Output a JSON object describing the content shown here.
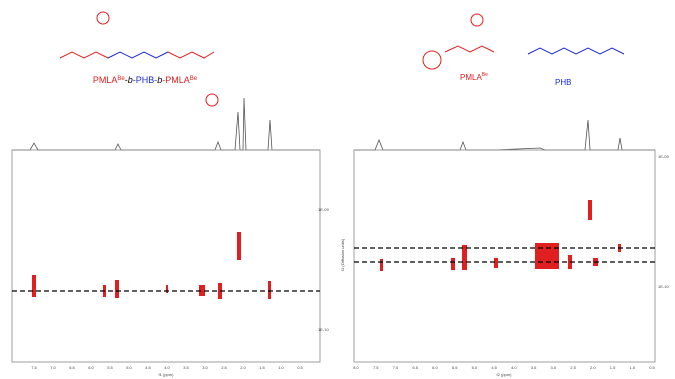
{
  "left_panel": {
    "compound_label": [
      "PMLA",
      "Be",
      "-",
      "b",
      "-PHB-",
      "b",
      "-PMLA",
      "Be"
    ],
    "x_axis_title": "f1 (ppm)",
    "x_ticks": [
      "7.5",
      "7.0",
      "6.5",
      "6.0",
      "5.5",
      "5.0",
      "4.5",
      "4.0",
      "3.5",
      "3.0",
      "2.5",
      "2.0",
      "1.5",
      "1.0",
      "0.5"
    ],
    "y_ticks": [
      "1E-09",
      "1E-10"
    ]
  },
  "right_panel": {
    "compound_labels": [
      [
        "PMLA",
        "Be"
      ],
      [
        "PHB"
      ]
    ],
    "x_axis_title": "f2 (ppm)",
    "y_axis_title": "f1 (Diffusion units)",
    "x_ticks": [
      "8.0",
      "7.5",
      "7.0",
      "6.5",
      "6.0",
      "5.5",
      "5.0",
      "4.5",
      "4.0",
      "3.5",
      "3.0",
      "2.5",
      "2.0",
      "1.5",
      "1.0",
      "0.5"
    ],
    "y_ticks": [
      "1E-09",
      "1E-10"
    ]
  }
}
